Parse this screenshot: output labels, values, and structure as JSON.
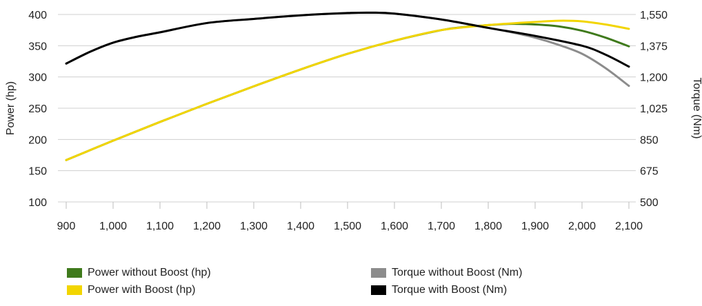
{
  "chart_data": {
    "type": "line",
    "title": "",
    "xlabel": "",
    "y_left_label": "Power (hp)",
    "y_right_label": "Torque (Nm)",
    "x_range": [
      900,
      2100
    ],
    "y_left_range": [
      100,
      400
    ],
    "y_right_range": [
      500,
      1550
    ],
    "x_ticks": [
      900,
      1000,
      1100,
      1200,
      1300,
      1400,
      1500,
      1600,
      1700,
      1800,
      1900,
      2000,
      2100
    ],
    "x_tick_labels": [
      "900",
      "1,000",
      "1,100",
      "1,200",
      "1,300",
      "1,400",
      "1,500",
      "1,600",
      "1,700",
      "1,800",
      "1,900",
      "2,000",
      "2,100"
    ],
    "y_left_ticks": [
      100,
      150,
      200,
      250,
      300,
      350,
      400
    ],
    "y_left_tick_labels": [
      "100",
      "150",
      "200",
      "250",
      "300",
      "350",
      "400"
    ],
    "y_right_ticks": [
      500,
      675,
      850,
      1025,
      1200,
      1375,
      1550
    ],
    "y_right_tick_labels": [
      "500",
      "675",
      "850",
      "1,025",
      "1,200",
      "1,375",
      "1,550"
    ],
    "grid": "horizontal",
    "legend_position": "bottom",
    "series": [
      {
        "name": "Power without Boost (hp)",
        "axis": "left",
        "color": "#3f7a1c",
        "points": [
          [
            900,
            167
          ],
          [
            1000,
            198
          ],
          [
            1100,
            228
          ],
          [
            1200,
            257
          ],
          [
            1300,
            285
          ],
          [
            1400,
            312
          ],
          [
            1500,
            337
          ],
          [
            1600,
            358
          ],
          [
            1700,
            375
          ],
          [
            1750,
            380
          ],
          [
            1800,
            383
          ],
          [
            1850,
            385
          ],
          [
            1900,
            384
          ],
          [
            1950,
            381
          ],
          [
            2000,
            374
          ],
          [
            2050,
            363
          ],
          [
            2100,
            349
          ]
        ]
      },
      {
        "name": "Power with Boost (hp)",
        "axis": "left",
        "color": "#f2d500",
        "points": [
          [
            900,
            167
          ],
          [
            1000,
            198
          ],
          [
            1100,
            228
          ],
          [
            1200,
            257
          ],
          [
            1300,
            285
          ],
          [
            1400,
            312
          ],
          [
            1500,
            337
          ],
          [
            1600,
            358
          ],
          [
            1700,
            375
          ],
          [
            1800,
            383
          ],
          [
            1900,
            388
          ],
          [
            1950,
            390
          ],
          [
            2000,
            389
          ],
          [
            2050,
            384
          ],
          [
            2100,
            377
          ]
        ]
      },
      {
        "name": "Torque without Boost (Nm)",
        "axis": "right",
        "color": "#8c8c8c",
        "points": [
          [
            900,
            1275
          ],
          [
            950,
            1340
          ],
          [
            1000,
            1392
          ],
          [
            1050,
            1425
          ],
          [
            1100,
            1450
          ],
          [
            1200,
            1502
          ],
          [
            1300,
            1525
          ],
          [
            1400,
            1545
          ],
          [
            1500,
            1558
          ],
          [
            1550,
            1560
          ],
          [
            1600,
            1555
          ],
          [
            1700,
            1522
          ],
          [
            1800,
            1475
          ],
          [
            1850,
            1450
          ],
          [
            1900,
            1420
          ],
          [
            1950,
            1380
          ],
          [
            2000,
            1330
          ],
          [
            2050,
            1250
          ],
          [
            2100,
            1150
          ]
        ]
      },
      {
        "name": "Torque with Boost (Nm)",
        "axis": "right",
        "color": "#000000",
        "points": [
          [
            900,
            1275
          ],
          [
            950,
            1340
          ],
          [
            1000,
            1392
          ],
          [
            1050,
            1425
          ],
          [
            1100,
            1450
          ],
          [
            1200,
            1502
          ],
          [
            1300,
            1525
          ],
          [
            1400,
            1545
          ],
          [
            1500,
            1558
          ],
          [
            1550,
            1560
          ],
          [
            1600,
            1555
          ],
          [
            1700,
            1522
          ],
          [
            1800,
            1475
          ],
          [
            1900,
            1430
          ],
          [
            2000,
            1375
          ],
          [
            2050,
            1325
          ],
          [
            2100,
            1258
          ]
        ]
      }
    ]
  }
}
